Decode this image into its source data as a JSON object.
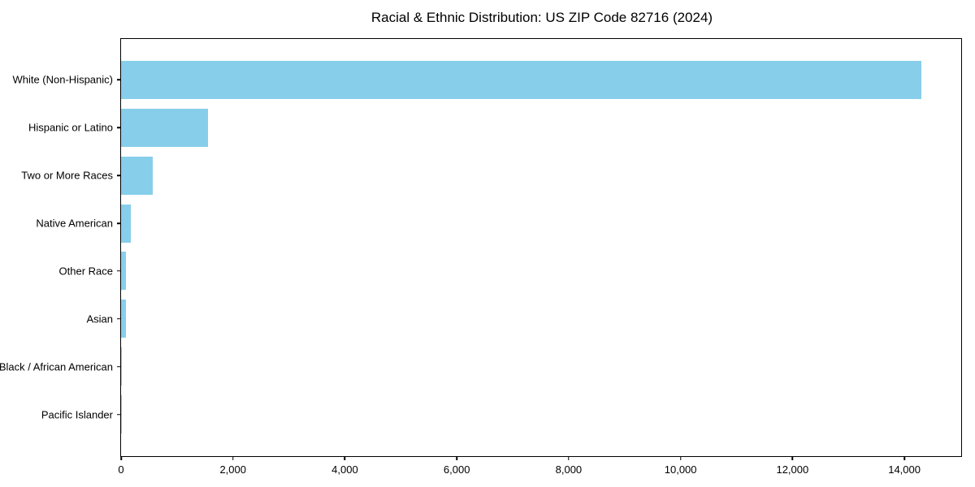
{
  "title": "Racial & Ethnic Distribution: US ZIP Code 82716 (2024)",
  "chart_data": {
    "type": "bar",
    "orientation": "horizontal",
    "title": "Racial & Ethnic Distribution: US ZIP Code 82716 (2024)",
    "xlabel": "",
    "ylabel": "",
    "categories": [
      "White (Non-Hispanic)",
      "Hispanic or Latino",
      "Two or More Races",
      "Native American",
      "Other Race",
      "Asian",
      "Black / African American",
      "Pacific Islander"
    ],
    "values": [
      14300,
      1550,
      565,
      175,
      85,
      80,
      15,
      5
    ],
    "bar_color": "#87ceeb",
    "xlim": [
      0,
      15015
    ],
    "x_ticks": [
      0,
      2000,
      4000,
      6000,
      8000,
      10000,
      12000,
      14000
    ],
    "x_tick_labels": [
      "0",
      "2,000",
      "4,000",
      "6,000",
      "8,000",
      "10,000",
      "12,000",
      "14,000"
    ],
    "grid": false,
    "legend": null
  }
}
